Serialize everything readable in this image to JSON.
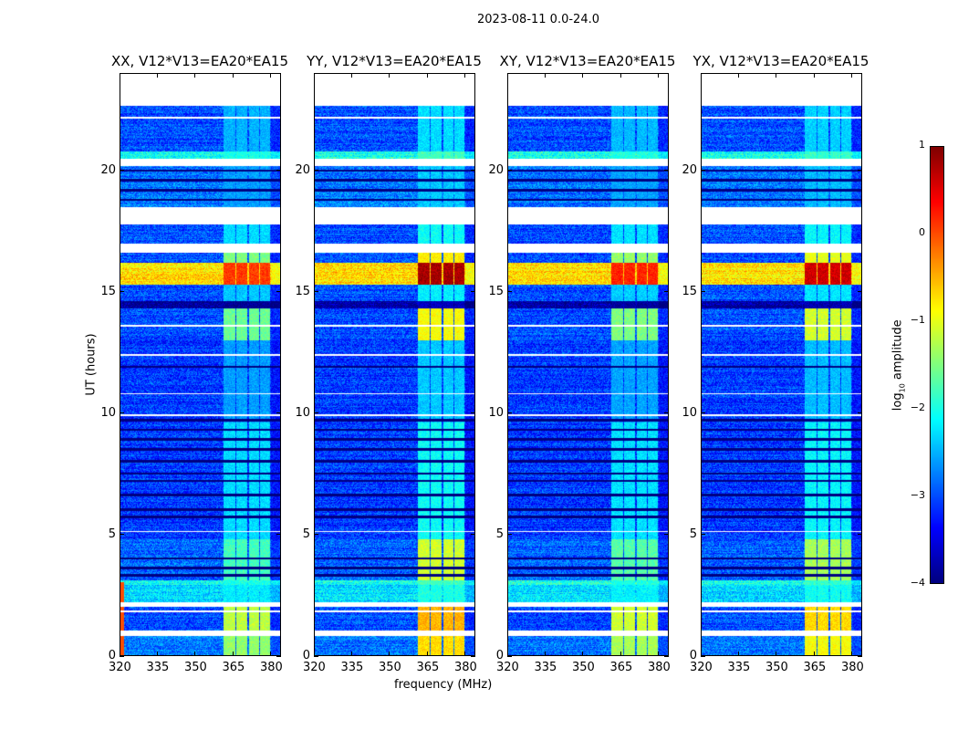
{
  "suptitle": "2023-08-11 0.0-24.0",
  "xlabel": "frequency (MHz)",
  "ylabel": "UT (hours)",
  "colorbar": {
    "label_main": "log",
    "label_sub": "10",
    "label_rest": " amplitude",
    "ticks": [
      "1",
      "0",
      "−1",
      "−2",
      "−3",
      "−4"
    ],
    "vmin": -4,
    "vmax": 1,
    "colormap": "jet"
  },
  "chart_data": {
    "type": "heatmap",
    "title": "2023-08-11 0.0-24.0",
    "xlabel": "frequency (MHz)",
    "ylabel": "UT (hours)",
    "xlim": [
      320,
      384
    ],
    "ylim": [
      0,
      24
    ],
    "xticks": [
      "320",
      "335",
      "350",
      "365",
      "380"
    ],
    "xtick_values": [
      320,
      335,
      350,
      365,
      380
    ],
    "yticks": [
      "0",
      "5",
      "10",
      "15",
      "20"
    ],
    "ytick_values": [
      0,
      5,
      10,
      15,
      20
    ],
    "color_scale": "log10 amplitude",
    "subbands_MHz": [
      [
        361.5,
        366
      ],
      [
        366.5,
        371
      ],
      [
        371.5,
        375.5
      ],
      [
        376,
        380
      ]
    ],
    "panels": [
      {
        "title": "XX, V12*V13=EA20*EA15",
        "band_offset": 0.0,
        "low_rfi": true
      },
      {
        "title": "YY, V12*V13=EA20*EA15",
        "band_offset": 0.7,
        "low_rfi": false
      },
      {
        "title": "XY, V12*V13=EA20*EA15",
        "band_offset": 0.1,
        "low_rfi": false
      },
      {
        "title": "YX, V12*V13=EA20*EA15",
        "band_offset": 0.5,
        "low_rfi": false
      }
    ],
    "segments_hours": [
      {
        "t": [
          0,
          0.8
        ],
        "base": -2.8,
        "band": -1.4
      },
      {
        "t": [
          0.8,
          1.0
        ],
        "gap": true
      },
      {
        "t": [
          1.0,
          2.0
        ],
        "base": -3.0,
        "band": -1.2
      },
      {
        "t": [
          2.0,
          2.2
        ],
        "gap": true
      },
      {
        "t": [
          2.2,
          2.9
        ],
        "base": -2.3,
        "band": -2.2
      },
      {
        "t": [
          2.9,
          3.1
        ],
        "base": -2.0,
        "band": -2.0
      },
      {
        "t": [
          3.1,
          4.8
        ],
        "base": -2.9,
        "band": -1.8
      },
      {
        "t": [
          4.8,
          9.6
        ],
        "base": -3.1,
        "band": -2.3
      },
      {
        "t": [
          9.6,
          13.0
        ],
        "base": -3.1,
        "band": -2.6
      },
      {
        "t": [
          13.0,
          14.3
        ],
        "base": -3.0,
        "band": -1.6
      },
      {
        "t": [
          14.3,
          14.6
        ],
        "base": -3.9,
        "band": -3.9
      },
      {
        "t": [
          14.6,
          15.3
        ],
        "base": -3.0,
        "band": -2.4
      },
      {
        "t": [
          15.3,
          16.2
        ],
        "base": -0.7,
        "band": 0.1
      },
      {
        "t": [
          16.2,
          16.6
        ],
        "base": -3.0,
        "band": -1.5
      },
      {
        "t": [
          16.6,
          17.0
        ],
        "gap": true
      },
      {
        "t": [
          17.0,
          17.8
        ],
        "base": -3.0,
        "band": -2.3
      },
      {
        "t": [
          17.8,
          18.5
        ],
        "gap": true
      },
      {
        "t": [
          18.5,
          20.2
        ],
        "base": -2.8,
        "band": -2.6
      },
      {
        "t": [
          20.2,
          20.5
        ],
        "gap": true
      },
      {
        "t": [
          20.5,
          20.8
        ],
        "base": -2.0,
        "band": -2.0
      },
      {
        "t": [
          20.8,
          22.7
        ],
        "base": -3.0,
        "band": -2.5
      },
      {
        "t": [
          22.7,
          24.0
        ],
        "gap": true
      }
    ],
    "dark_lines_hours": [
      3.3,
      3.6,
      4.0,
      5.7,
      6.0,
      6.6,
      7.2,
      7.5,
      8.0,
      8.5,
      8.9,
      9.3,
      9.7,
      11.9,
      18.8,
      19.2,
      19.6,
      20.0
    ],
    "blank_lines_hours": [
      1.8,
      5.1,
      9.9,
      10.8,
      12.4,
      13.6,
      22.2
    ]
  }
}
